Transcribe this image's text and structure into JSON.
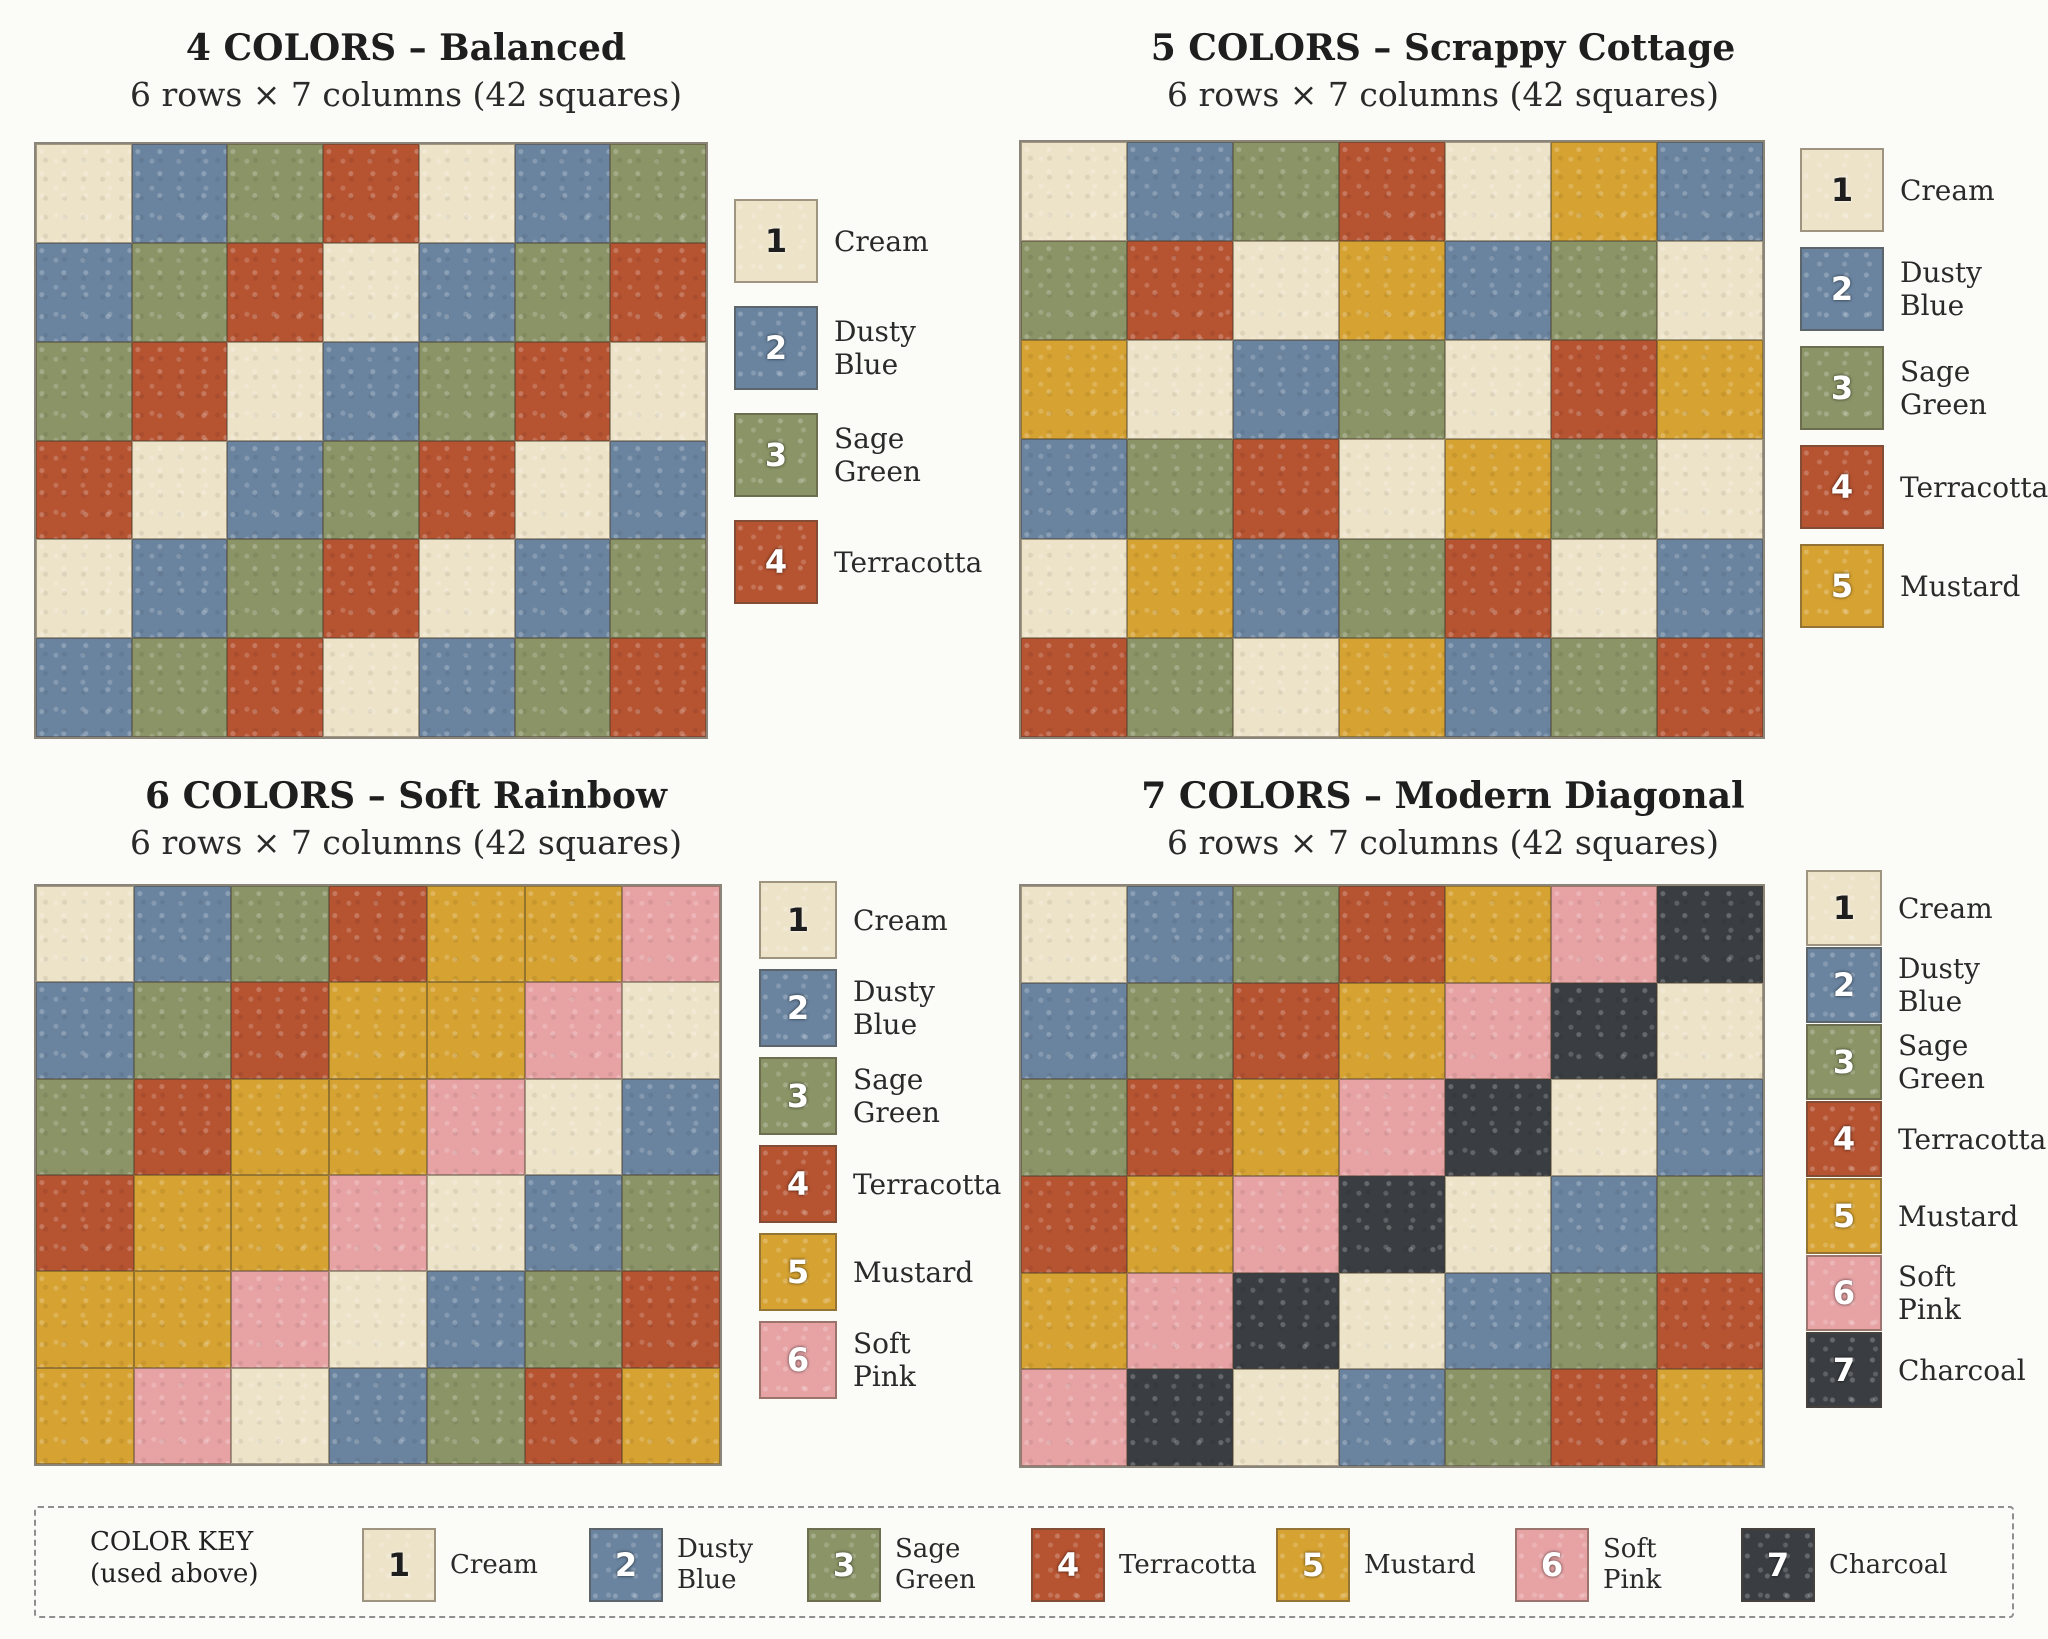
{
  "colors": {
    "1": {
      "name": "Cream",
      "hex": "#ede3c8"
    },
    "2": {
      "name": "Dusty Blue",
      "hex": "#6a84a0"
    },
    "3": {
      "name": "Sage Green",
      "hex": "#8a9466"
    },
    "4": {
      "name": "Terracotta",
      "hex": "#b65331"
    },
    "5": {
      "name": "Mustard",
      "hex": "#d6a231"
    },
    "6": {
      "name": "Soft Pink",
      "hex": "#e7a2a4"
    },
    "7": {
      "name": "Charcoal",
      "hex": "#3a3e42"
    }
  },
  "panels": [
    {
      "title": "4 COLORS – Balanced",
      "subtitle": "6 rows × 7 columns (42 squares)",
      "grid": [
        [
          1,
          2,
          3,
          4,
          1,
          2,
          3
        ],
        [
          2,
          3,
          4,
          1,
          2,
          3,
          4
        ],
        [
          3,
          4,
          1,
          2,
          3,
          4,
          1
        ],
        [
          4,
          1,
          2,
          3,
          4,
          1,
          2
        ],
        [
          1,
          2,
          3,
          4,
          1,
          2,
          3
        ],
        [
          2,
          3,
          4,
          1,
          2,
          3,
          4
        ]
      ],
      "legend": [
        {
          "num": "1",
          "lines": [
            "Cream"
          ]
        },
        {
          "num": "2",
          "lines": [
            "Dusty",
            "Blue"
          ]
        },
        {
          "num": "3",
          "lines": [
            "Sage",
            "Green"
          ]
        },
        {
          "num": "4",
          "lines": [
            "Terracotta"
          ]
        }
      ]
    },
    {
      "title": "5 COLORS – Scrappy Cottage",
      "subtitle": "6 rows × 7 columns (42 squares)",
      "grid": [
        [
          1,
          2,
          3,
          4,
          1,
          5,
          2
        ],
        [
          3,
          4,
          1,
          5,
          2,
          3,
          1
        ],
        [
          5,
          1,
          2,
          3,
          1,
          4,
          5
        ],
        [
          2,
          3,
          4,
          1,
          5,
          3,
          1
        ],
        [
          1,
          5,
          2,
          3,
          4,
          1,
          2
        ],
        [
          4,
          3,
          1,
          5,
          2,
          3,
          4
        ]
      ],
      "legend": [
        {
          "num": "1",
          "lines": [
            "Cream"
          ]
        },
        {
          "num": "2",
          "lines": [
            "Dusty",
            "Blue"
          ]
        },
        {
          "num": "3",
          "lines": [
            "Sage",
            "Green"
          ]
        },
        {
          "num": "4",
          "lines": [
            "Terracotta"
          ]
        },
        {
          "num": "5",
          "lines": [
            "Mustard"
          ]
        }
      ]
    },
    {
      "title": "6 COLORS – Soft Rainbow",
      "subtitle": "6 rows × 7 columns (42 squares)",
      "grid": [
        [
          1,
          2,
          3,
          4,
          5,
          5,
          6
        ],
        [
          2,
          3,
          4,
          5,
          5,
          6,
          1
        ],
        [
          3,
          4,
          5,
          5,
          6,
          1,
          2
        ],
        [
          4,
          5,
          5,
          6,
          1,
          2,
          3
        ],
        [
          5,
          5,
          6,
          1,
          2,
          3,
          4
        ],
        [
          5,
          6,
          1,
          2,
          3,
          4,
          5
        ]
      ],
      "legend": [
        {
          "num": "1",
          "lines": [
            "Cream"
          ]
        },
        {
          "num": "2",
          "lines": [
            "Dusty",
            "Blue"
          ]
        },
        {
          "num": "3",
          "lines": [
            "Sage",
            "Green"
          ]
        },
        {
          "num": "4",
          "lines": [
            "Terracotta"
          ]
        },
        {
          "num": "5",
          "lines": [
            "Mustard"
          ]
        },
        {
          "num": "6",
          "lines": [
            "Soft",
            "Pink"
          ]
        }
      ]
    },
    {
      "title": "7 COLORS – Modern Diagonal",
      "subtitle": "6 rows × 7 columns (42 squares)",
      "grid": [
        [
          1,
          2,
          3,
          4,
          5,
          6,
          7
        ],
        [
          2,
          3,
          4,
          5,
          6,
          7,
          1
        ],
        [
          3,
          4,
          5,
          6,
          7,
          1,
          2
        ],
        [
          4,
          5,
          6,
          7,
          1,
          2,
          3
        ],
        [
          5,
          6,
          7,
          1,
          2,
          3,
          4
        ],
        [
          6,
          7,
          1,
          2,
          3,
          4,
          5
        ]
      ],
      "legend": [
        {
          "num": "1",
          "lines": [
            "Cream"
          ]
        },
        {
          "num": "2",
          "lines": [
            "Dusty",
            "Blue"
          ]
        },
        {
          "num": "3",
          "lines": [
            "Sage",
            "Green"
          ]
        },
        {
          "num": "4",
          "lines": [
            "Terracotta"
          ]
        },
        {
          "num": "5",
          "lines": [
            "Mustard"
          ]
        },
        {
          "num": "6",
          "lines": [
            "Soft",
            "Pink"
          ]
        },
        {
          "num": "7",
          "lines": [
            "Charcoal"
          ]
        }
      ]
    }
  ],
  "key": {
    "label_line1": "COLOR KEY",
    "label_line2": "(used above)",
    "items": [
      {
        "num": "1",
        "lines": [
          "Cream"
        ]
      },
      {
        "num": "2",
        "lines": [
          "Dusty",
          "Blue"
        ]
      },
      {
        "num": "3",
        "lines": [
          "Sage",
          "Green"
        ]
      },
      {
        "num": "4",
        "lines": [
          "Terracotta"
        ]
      },
      {
        "num": "5",
        "lines": [
          "Mustard"
        ]
      },
      {
        "num": "6",
        "lines": [
          "Soft",
          "Pink"
        ]
      },
      {
        "num": "7",
        "lines": [
          "Charcoal"
        ]
      }
    ]
  }
}
